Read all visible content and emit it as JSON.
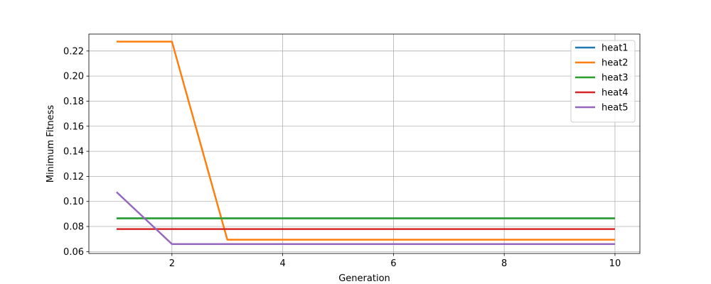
{
  "chart_data": {
    "type": "line",
    "xlabel": "Generation",
    "ylabel": "Minimum Fitness",
    "xlim": [
      0.5,
      10.45
    ],
    "ylim": [
      0.0585,
      0.2335
    ],
    "xticks": [
      "2",
      "4",
      "6",
      "8",
      "10"
    ],
    "yticks": [
      "0.06",
      "0.08",
      "0.10",
      "0.12",
      "0.14",
      "0.16",
      "0.18",
      "0.20",
      "0.22"
    ],
    "grid": true,
    "legend_position": "top-right",
    "x": [
      1,
      2,
      3,
      4,
      5,
      6,
      7,
      8,
      9,
      10
    ],
    "series": [
      {
        "name": "heat1",
        "color": "#1f77b4",
        "values": [
          0.0865,
          0.0865,
          0.0865,
          0.0865,
          0.0865,
          0.0865,
          0.0865,
          0.0865,
          0.0865,
          0.0865
        ]
      },
      {
        "name": "heat2",
        "color": "#ff7f0e",
        "values": [
          0.2275,
          0.2275,
          0.0695,
          0.0695,
          0.0695,
          0.0695,
          0.0695,
          0.0695,
          0.0695,
          0.0695
        ]
      },
      {
        "name": "heat3",
        "color": "#2ca02c",
        "values": [
          0.0865,
          0.0865,
          0.0865,
          0.0865,
          0.0865,
          0.0865,
          0.0865,
          0.0865,
          0.0865,
          0.0865
        ]
      },
      {
        "name": "heat4",
        "color": "#d62728",
        "values": [
          0.078,
          0.078,
          0.078,
          0.078,
          0.078,
          0.078,
          0.078,
          0.078,
          0.078,
          0.078
        ]
      },
      {
        "name": "heat5",
        "color": "#9467bd",
        "values": [
          0.1075,
          0.066,
          0.066,
          0.066,
          0.066,
          0.066,
          0.066,
          0.066,
          0.066,
          0.066
        ]
      }
    ]
  }
}
